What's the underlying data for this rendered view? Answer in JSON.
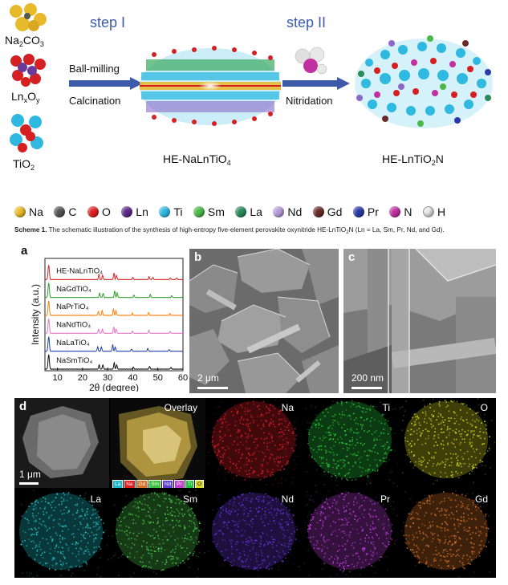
{
  "scheme": {
    "step1": "step I",
    "step2": "step II",
    "process1_top": "Ball-milling",
    "process1_bottom": "Calcination",
    "process2": "Nitridation",
    "reactants": [
      {
        "name": "Na",
        "sub": "2",
        "name2": "CO",
        "sub2": "3"
      },
      {
        "name": "Ln",
        "sub": "x",
        "name2": "O",
        "sub2": "y"
      },
      {
        "name": "TiO",
        "sub": "2",
        "name2": "",
        "sub2": ""
      }
    ],
    "intermediate": "HE-NaLnTiO",
    "intermediate_sub": "4",
    "product": "HE-LnTiO",
    "product_sub": "2",
    "product_tail": "N"
  },
  "legend": [
    {
      "label": "Na",
      "color": "#e8b92a"
    },
    {
      "label": "C",
      "color": "#555555"
    },
    {
      "label": "O",
      "color": "#e02020"
    },
    {
      "label": "Ln",
      "color": "#5b2a8a"
    },
    {
      "label": "Ti",
      "color": "#2fb8e0"
    },
    {
      "label": "Sm",
      "color": "#4cb84a"
    },
    {
      "label": "La",
      "color": "#2a8a5a"
    },
    {
      "label": "Nd",
      "color": "#b89ad8"
    },
    {
      "label": "Gd",
      "color": "#6a2a2a"
    },
    {
      "label": "Pr",
      "color": "#2a3aa8"
    },
    {
      "label": "N",
      "color": "#c030a0"
    },
    {
      "label": "H",
      "color": "#e8e8e8"
    }
  ],
  "caption": {
    "bold": "Scheme 1.",
    "text": "The schematic illustration of the synthesis of high-entropy five-element perovskite oxynitride HE-LnTiO",
    "sub": "2",
    "tail": "N (Ln = La, Sm, Pr, Nd, and Gd)."
  },
  "panels": {
    "a": "a",
    "b": "b",
    "c": "c",
    "d": "d"
  },
  "chart_data": {
    "type": "line",
    "xlabel": "2θ (degree)",
    "ylabel": "Intensity (a.u.)",
    "xlim": [
      5,
      60
    ],
    "xticks": [
      10,
      20,
      30,
      40,
      50,
      60
    ],
    "series": [
      {
        "name": "HE-NaLnTiO₄",
        "color": "#d62728",
        "peaks": [
          [
            6.5,
            1.0
          ],
          [
            26.5,
            0.35
          ],
          [
            28.0,
            0.3
          ],
          [
            32.5,
            0.45
          ],
          [
            33.5,
            0.3
          ],
          [
            40.0,
            0.15
          ],
          [
            46.5,
            0.2
          ],
          [
            48.0,
            0.15
          ],
          [
            55.0,
            0.12
          ],
          [
            57.5,
            0.12
          ]
        ]
      },
      {
        "name": "NaGdTiO₄",
        "color": "#2ca02c",
        "peaks": [
          [
            6.5,
            1.0
          ],
          [
            26.8,
            0.3
          ],
          [
            28.2,
            0.3
          ],
          [
            32.8,
            0.45
          ],
          [
            33.8,
            0.3
          ],
          [
            40.5,
            0.15
          ],
          [
            47.0,
            0.2
          ],
          [
            55.5,
            0.12
          ]
        ]
      },
      {
        "name": "NaPrTiO₄",
        "color": "#ff7f0e",
        "peaks": [
          [
            6.5,
            1.0
          ],
          [
            26.3,
            0.3
          ],
          [
            27.8,
            0.35
          ],
          [
            32.3,
            0.45
          ],
          [
            33.3,
            0.3
          ],
          [
            39.8,
            0.15
          ],
          [
            46.3,
            0.2
          ],
          [
            54.8,
            0.12
          ]
        ]
      },
      {
        "name": "NaNdTiO₄",
        "color": "#e377c2",
        "peaks": [
          [
            6.5,
            1.0
          ],
          [
            26.4,
            0.3
          ],
          [
            27.9,
            0.3
          ],
          [
            32.4,
            0.45
          ],
          [
            33.4,
            0.3
          ],
          [
            39.9,
            0.15
          ],
          [
            46.4,
            0.2
          ],
          [
            54.9,
            0.12
          ]
        ]
      },
      {
        "name": "NaLaTiO₄",
        "color": "#1f3fb4",
        "peaks": [
          [
            6.5,
            1.0
          ],
          [
            26.0,
            0.3
          ],
          [
            27.5,
            0.3
          ],
          [
            32.0,
            0.45
          ],
          [
            33.0,
            0.3
          ],
          [
            39.5,
            0.15
          ],
          [
            46.0,
            0.2
          ],
          [
            54.5,
            0.12
          ]
        ]
      },
      {
        "name": "NaSmTiO₄",
        "color": "#111111",
        "peaks": [
          [
            6.5,
            1.0
          ],
          [
            26.6,
            0.3
          ],
          [
            28.1,
            0.3
          ],
          [
            32.6,
            0.45
          ],
          [
            33.6,
            0.3
          ],
          [
            40.2,
            0.15
          ],
          [
            46.7,
            0.2
          ],
          [
            55.2,
            0.12
          ]
        ]
      }
    ]
  },
  "sem": {
    "b_scale": "2 μm",
    "c_scale": "200 nm"
  },
  "eds": {
    "scale": "1 μm",
    "overlay_label": "Overlay",
    "overlay_swatches": [
      {
        "label": "La",
        "color": "#20b8c8"
      },
      {
        "label": "Na",
        "color": "#e02020"
      },
      {
        "label": "Gd",
        "color": "#d87020"
      },
      {
        "label": "Sm",
        "color": "#40c040"
      },
      {
        "label": "Nd",
        "color": "#6040d0"
      },
      {
        "label": "Pr",
        "color": "#c040d0"
      },
      {
        "label": "Ti",
        "color": "#20c040"
      },
      {
        "label": "O",
        "color": "#d8d820"
      }
    ],
    "maps": [
      {
        "label": "Na",
        "color": "#e8202a"
      },
      {
        "label": "Ti",
        "color": "#2ad040"
      },
      {
        "label": "O",
        "color": "#e0e020"
      },
      {
        "label": "La",
        "color": "#20c8d0"
      },
      {
        "label": "Sm",
        "color": "#50d050"
      },
      {
        "label": "Nd",
        "color": "#6a38e0"
      },
      {
        "label": "Pr",
        "color": "#c040e0"
      },
      {
        "label": "Gd",
        "color": "#e07828"
      }
    ]
  }
}
